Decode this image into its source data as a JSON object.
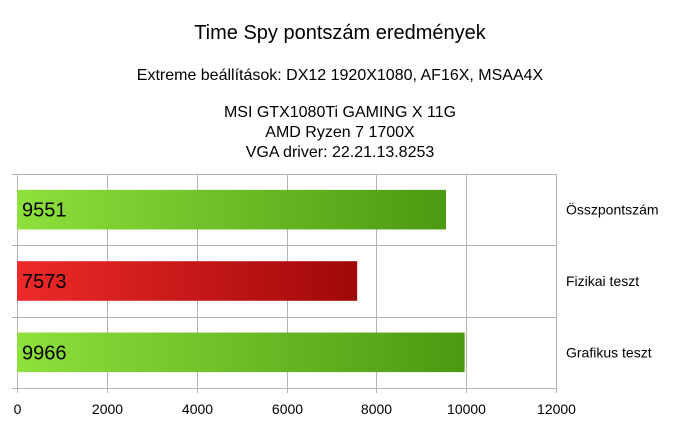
{
  "chart_data": {
    "type": "bar",
    "orientation": "horizontal",
    "title": "Time Spy pontszám eredmények",
    "subtitle": "Extreme beállítások: DX12 1920X1080, AF16X, MSAA4X",
    "info_lines": [
      "MSI GTX1080Ti GAMING X 11G",
      "AMD Ryzen 7 1700X",
      "VGA driver: 22.21.13.8253"
    ],
    "categories": [
      "Összpontszám",
      "Fizikai teszt",
      "Grafikus teszt"
    ],
    "values": [
      9551,
      7573,
      9966
    ],
    "bar_colors": [
      "#5fbf1f",
      "#c41616",
      "#5fbf1f"
    ],
    "xlim": [
      0,
      12000
    ],
    "xticks": [
      0,
      2000,
      4000,
      6000,
      8000,
      10000,
      12000
    ],
    "grid": true
  }
}
